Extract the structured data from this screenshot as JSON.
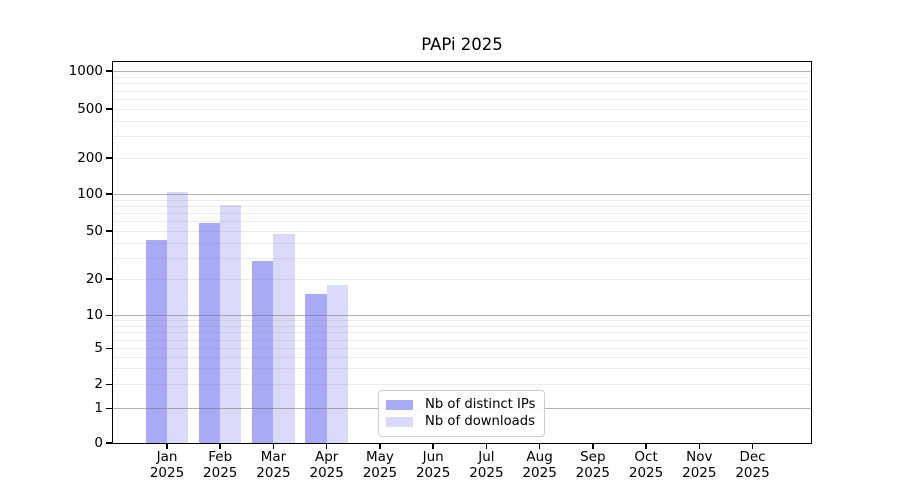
{
  "figure": {
    "title": "PAPi 2025"
  },
  "chart_data": {
    "type": "bar",
    "title": "PAPi 2025",
    "categories": [
      "Jan 2025",
      "Feb 2025",
      "Mar 2025",
      "Apr 2025",
      "May 2025",
      "Jun 2025",
      "Jul 2025",
      "Aug 2025",
      "Sep 2025",
      "Oct 2025",
      "Nov 2025",
      "Dec 2025"
    ],
    "x_tick_months": [
      "Jan",
      "Feb",
      "Mar",
      "Apr",
      "May",
      "Jun",
      "Jul",
      "Aug",
      "Sep",
      "Oct",
      "Nov",
      "Dec"
    ],
    "x_tick_year": "2025",
    "series": [
      {
        "name": "Nb of distinct IPs",
        "color": "#a9a9f5",
        "values": [
          42,
          58,
          28,
          15,
          0,
          0,
          0,
          0,
          0,
          0,
          0,
          0
        ]
      },
      {
        "name": "Nb of downloads",
        "color": "#d9d9f8",
        "values": [
          103,
          81,
          47,
          18,
          0,
          0,
          0,
          0,
          0,
          0,
          0,
          0
        ]
      }
    ],
    "y_axis": {
      "scale": "symlog",
      "ticks": [
        0,
        1,
        2,
        5,
        10,
        20,
        50,
        100,
        200,
        500,
        1000
      ],
      "major_grid_at": [
        1,
        10,
        100,
        1000
      ],
      "range": [
        0,
        1000
      ]
    },
    "grid": {
      "major": true,
      "minor": true
    },
    "legend": {
      "position": "inside-bottom-center",
      "entries": [
        "Nb of distinct IPs",
        "Nb of downloads"
      ]
    }
  },
  "colors": {
    "bar_distinct_ips": "#a9a9f5",
    "bar_downloads": "#d9d9f8",
    "grid_major": "#b3b3b3",
    "grid_minor": "#ebebeb",
    "axis": "#000000",
    "legend_border": "#cccccc"
  }
}
